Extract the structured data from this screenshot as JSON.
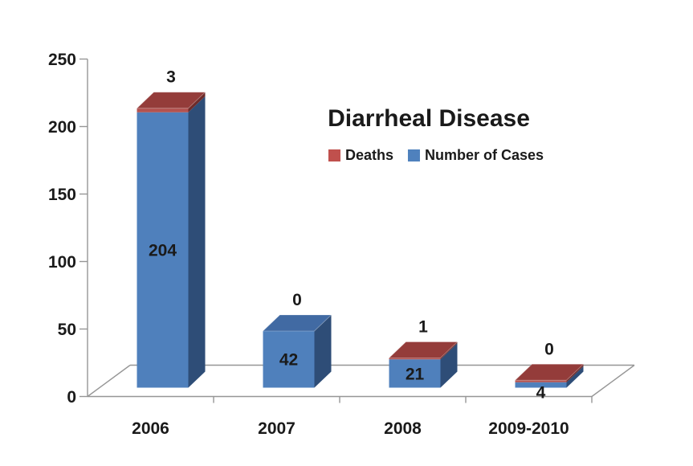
{
  "chart_data": {
    "type": "bar",
    "variant": "3d-stacked-column",
    "title": "Diarrheal Disease",
    "categories": [
      "2006",
      "2007",
      "2008",
      "2009-2010"
    ],
    "series": [
      {
        "name": "Deaths",
        "values": [
          3,
          0,
          1,
          0
        ],
        "color": "#C0504D"
      },
      {
        "name": "Number of Cases",
        "values": [
          204,
          42,
          21,
          4
        ],
        "color": "#4F81BD"
      }
    ],
    "data_labels": {
      "deaths_above_bars": [
        3,
        0,
        1,
        0
      ],
      "cases_on_bars": [
        204,
        42,
        21,
        4
      ]
    },
    "y_axis": {
      "min": 0,
      "max": 250,
      "step": 50,
      "ticks": [
        0,
        50,
        100,
        150,
        200,
        250
      ]
    },
    "x_axis_label": "",
    "y_axis_label": "",
    "grid": false,
    "legend_position": "inside-right-under-title",
    "top_face_colors": [
      "deaths",
      "cases",
      "deaths",
      "deaths"
    ],
    "colors": {
      "cases_front": "#4F80BC",
      "cases_side": "#2E4D77",
      "cases_top": "#416AA3",
      "deaths_front": "#B35250",
      "deaths_side": "#6E2B2A",
      "deaths_top": "#943C3A",
      "axis": "#969696",
      "text": "#1A1A1A",
      "background": "#FFFFFF"
    }
  }
}
